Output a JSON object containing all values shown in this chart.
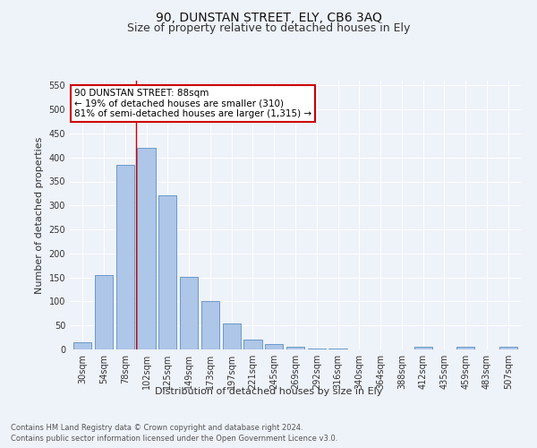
{
  "title": "90, DUNSTAN STREET, ELY, CB6 3AQ",
  "subtitle": "Size of property relative to detached houses in Ely",
  "xlabel": "Distribution of detached houses by size in Ely",
  "ylabel": "Number of detached properties",
  "footer_line1": "Contains HM Land Registry data © Crown copyright and database right 2024.",
  "footer_line2": "Contains public sector information licensed under the Open Government Licence v3.0.",
  "categories": [
    "30sqm",
    "54sqm",
    "78sqm",
    "102sqm",
    "125sqm",
    "149sqm",
    "173sqm",
    "197sqm",
    "221sqm",
    "245sqm",
    "269sqm",
    "292sqm",
    "316sqm",
    "340sqm",
    "364sqm",
    "388sqm",
    "412sqm",
    "435sqm",
    "459sqm",
    "483sqm",
    "507sqm"
  ],
  "values": [
    15,
    155,
    385,
    420,
    322,
    152,
    100,
    55,
    20,
    12,
    5,
    2,
    1,
    0,
    0,
    0,
    5,
    0,
    5,
    0,
    5
  ],
  "bar_color": "#aec6e8",
  "bar_edge_color": "#5a8fc0",
  "vline_x_index": 2.5,
  "vline_color": "#cc0000",
  "annotation_text": "90 DUNSTAN STREET: 88sqm\n← 19% of detached houses are smaller (310)\n81% of semi-detached houses are larger (1,315) →",
  "annotation_box_color": "#ffffff",
  "annotation_box_edge_color": "#cc0000",
  "ylim": [
    0,
    560
  ],
  "yticks": [
    0,
    50,
    100,
    150,
    200,
    250,
    300,
    350,
    400,
    450,
    500,
    550
  ],
  "background_color": "#eef2f9",
  "grid_color": "#ffffff",
  "title_fontsize": 10,
  "subtitle_fontsize": 9,
  "tick_fontsize": 7,
  "ylabel_fontsize": 8,
  "xlabel_fontsize": 8,
  "footer_fontsize": 6,
  "ann_fontsize": 7.5
}
